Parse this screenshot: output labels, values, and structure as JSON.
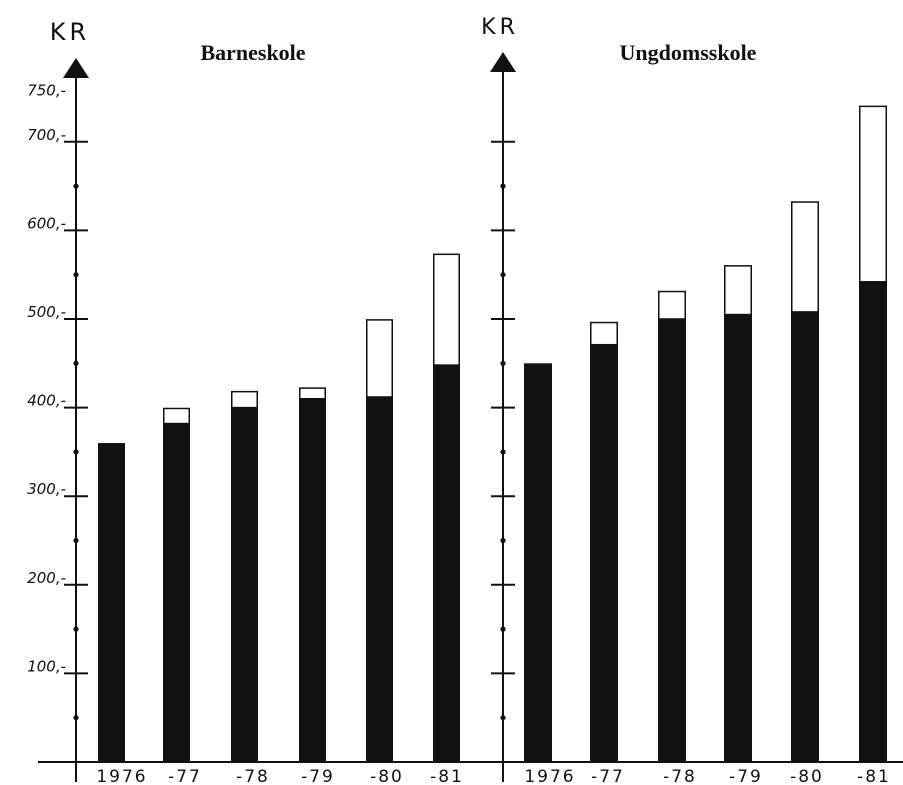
{
  "chart_data": [
    {
      "type": "bar",
      "stacked": true,
      "title": "Barneskole",
      "ylabel": "KR",
      "xlabel": "",
      "ylim": [
        0,
        750
      ],
      "y_ticks": [
        100,
        200,
        300,
        400,
        500,
        600,
        700,
        750
      ],
      "y_tick_labels": [
        "100,-",
        "200,-",
        "300,-",
        "400,-",
        "500,-",
        "600,-",
        "700,-",
        "750,-"
      ],
      "categories": [
        "1976",
        "-77",
        "-78",
        "-79",
        "-80",
        "-81"
      ],
      "series": [
        {
          "values": [
            360,
            382,
            400,
            410,
            412,
            448
          ],
          "color": "#111111"
        },
        {
          "values": [
            0,
            17,
            18,
            12,
            87,
            125
          ],
          "color": "#ffffff"
        }
      ]
    },
    {
      "type": "bar",
      "stacked": true,
      "title": "Ungdomsskole",
      "ylabel": "KR",
      "xlabel": "",
      "ylim": [
        0,
        750
      ],
      "categories": [
        "1976",
        "-77",
        "-78",
        "-79",
        "-80",
        "-81"
      ],
      "series": [
        {
          "values": [
            450,
            471,
            500,
            505,
            508,
            542
          ],
          "color": "#111111"
        },
        {
          "values": [
            0,
            25,
            31,
            55,
            124,
            198
          ],
          "color": "#ffffff"
        }
      ]
    }
  ]
}
